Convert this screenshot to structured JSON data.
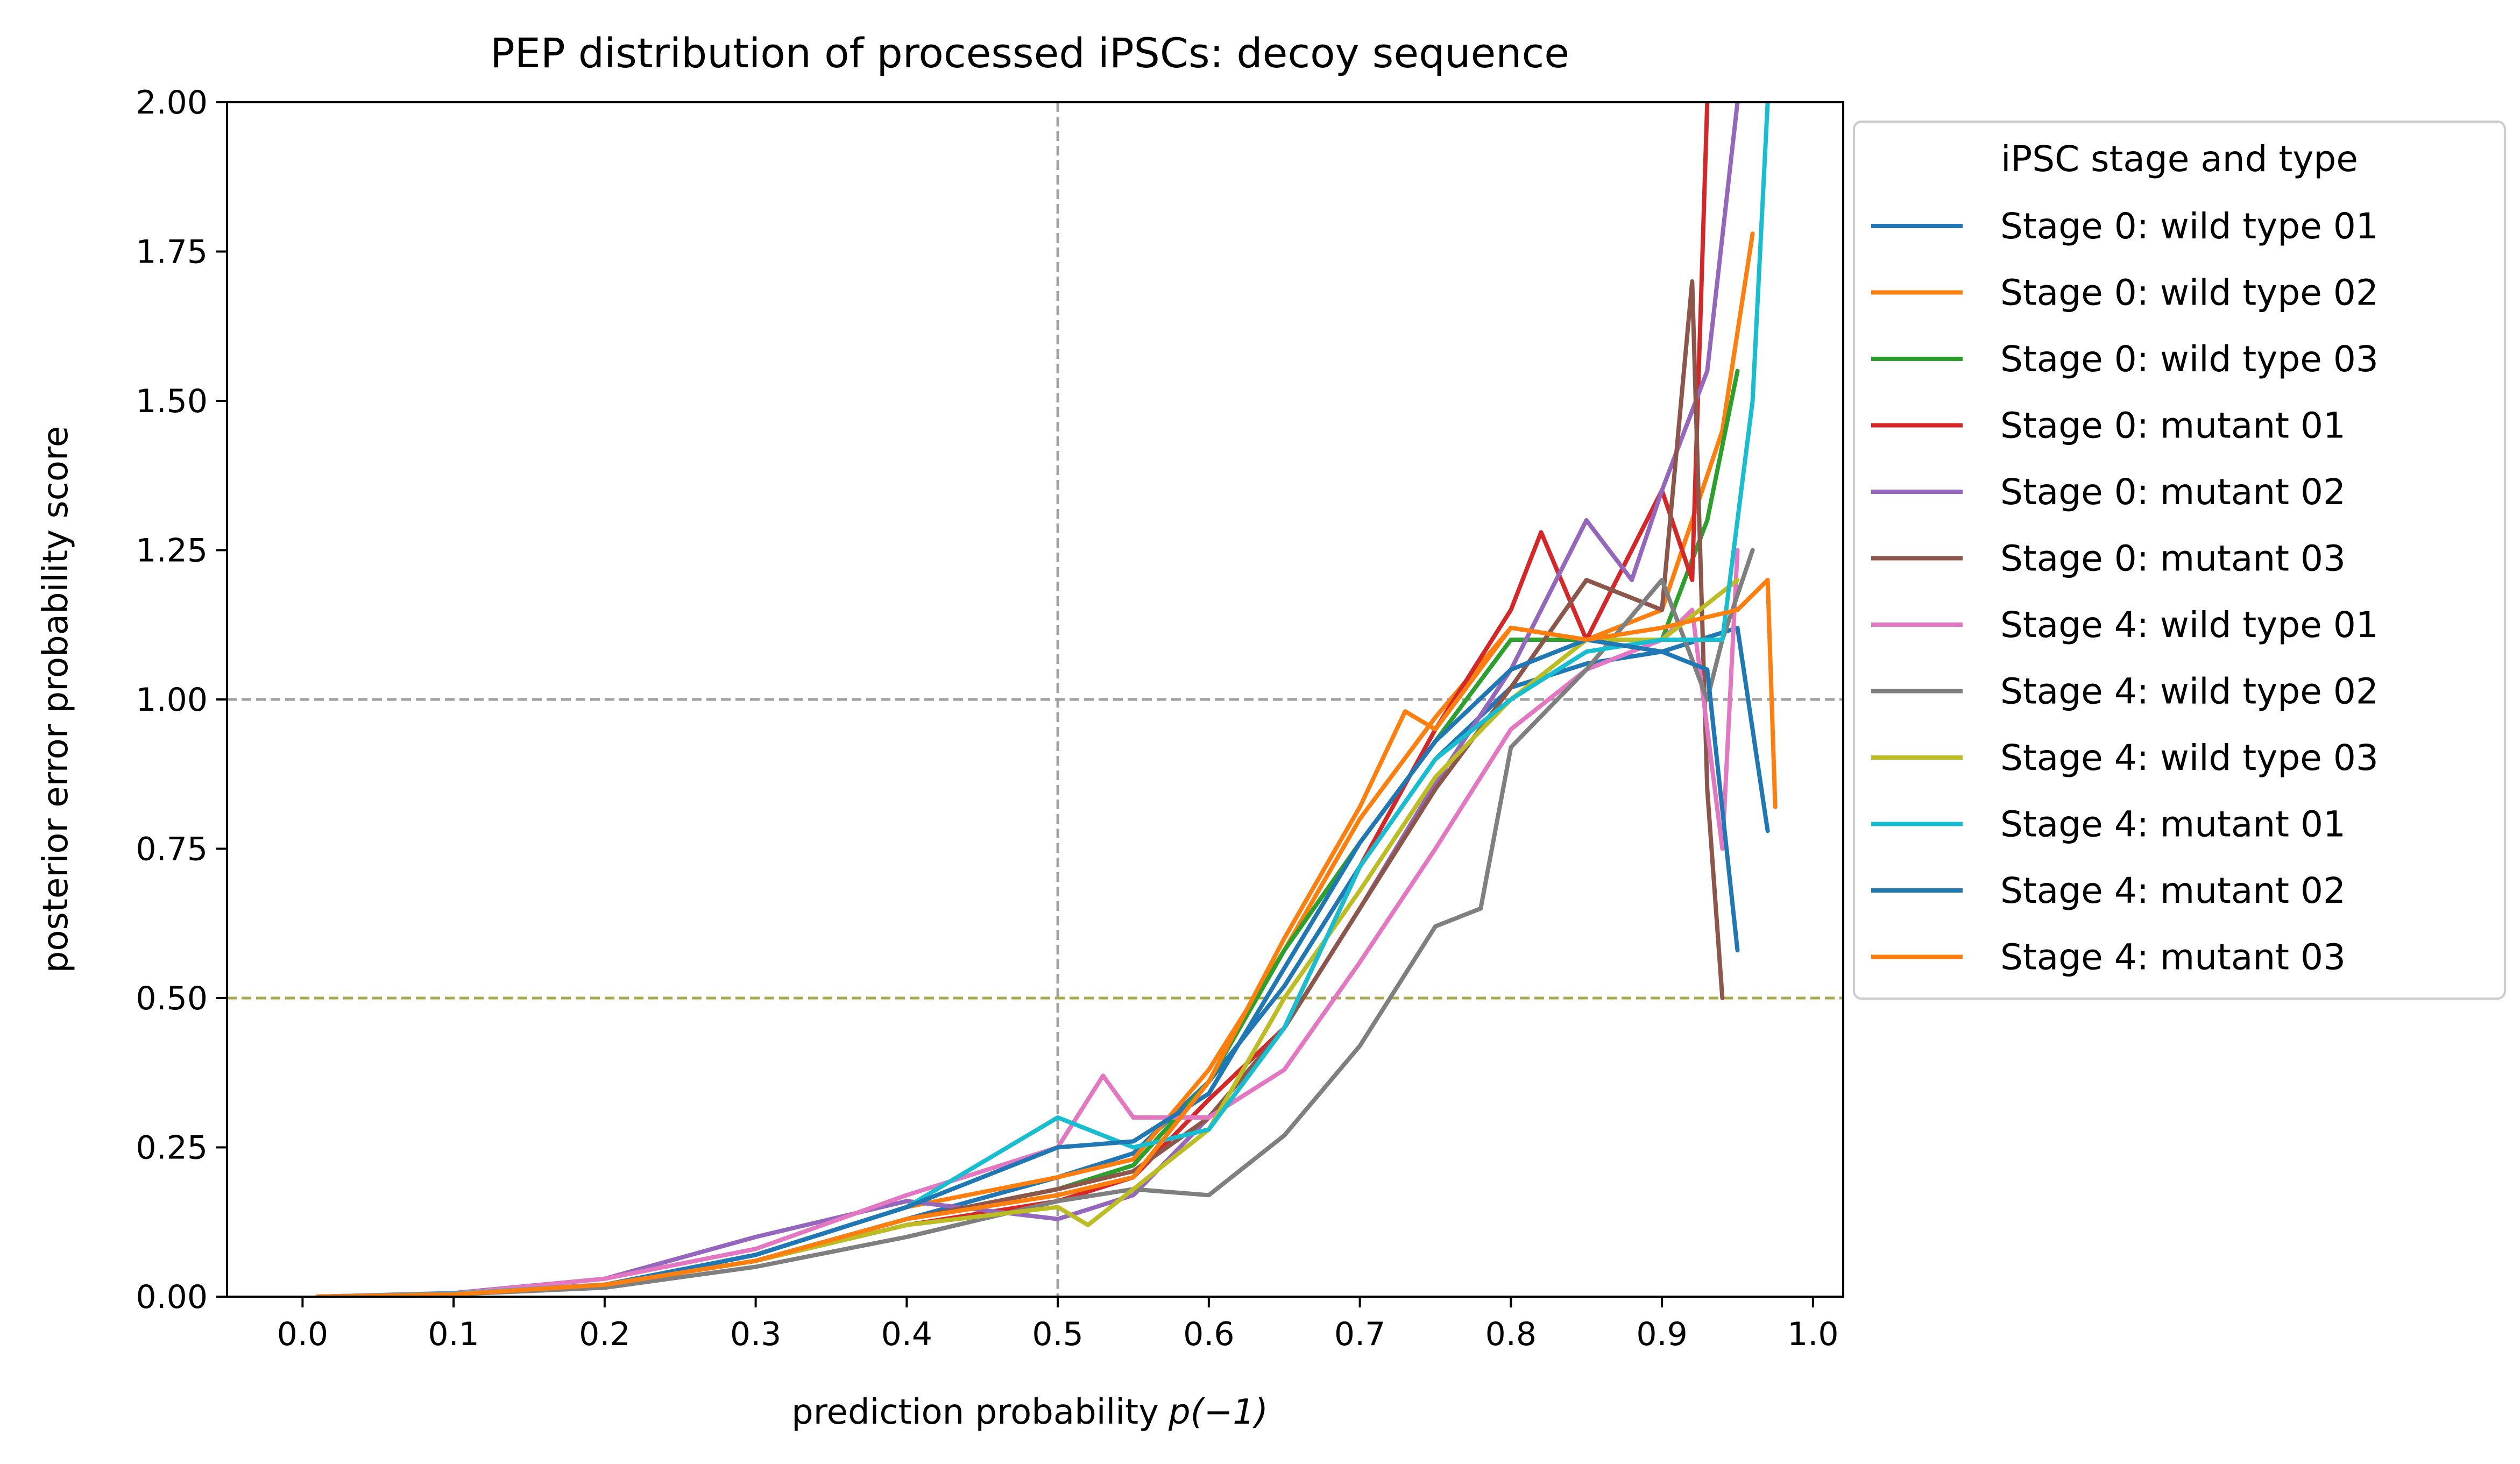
{
  "chart_data": {
    "type": "line",
    "title": "PEP distribution of processed iPSCs: decoy sequence",
    "xlabel_main": "prediction probability",
    "xlabel_math": "p(−1)",
    "ylabel": "posterior error probability score",
    "xlim": [
      -0.05,
      1.02
    ],
    "ylim": [
      0,
      2
    ],
    "x_ticks": [
      0.0,
      0.1,
      0.2,
      0.3,
      0.4,
      0.5,
      0.6,
      0.7,
      0.8,
      0.9,
      1.0
    ],
    "x_tick_labels": [
      "0.0",
      "0.1",
      "0.2",
      "0.3",
      "0.4",
      "0.5",
      "0.6",
      "0.7",
      "0.8",
      "0.9",
      "1.0"
    ],
    "y_ticks": [
      0.0,
      0.25,
      0.5,
      0.75,
      1.0,
      1.25,
      1.5,
      1.75,
      2.0
    ],
    "y_tick_labels": [
      "0.00",
      "0.25",
      "0.50",
      "0.75",
      "1.00",
      "1.25",
      "1.50",
      "1.75",
      "2.00"
    ],
    "reference_lines": [
      {
        "orientation": "vertical",
        "value": 0.5,
        "color": "#a0a0a0"
      },
      {
        "orientation": "horizontal",
        "value": 1.0,
        "color": "#a0a0a0"
      },
      {
        "orientation": "horizontal",
        "value": 0.5,
        "color": "#a8a84e"
      }
    ],
    "legend": {
      "title": "iPSC stage and type",
      "placement": "outside-upper-right"
    },
    "series": [
      {
        "name": "Stage 0: wild type 01",
        "color": "#1f77b4",
        "x": [
          0.01,
          0.1,
          0.2,
          0.3,
          0.4,
          0.5,
          0.55,
          0.6,
          0.65,
          0.7,
          0.75,
          0.8,
          0.85,
          0.9,
          0.95,
          0.97
        ],
        "y": [
          0.0,
          0.005,
          0.02,
          0.06,
          0.13,
          0.2,
          0.24,
          0.36,
          0.52,
          0.72,
          0.9,
          1.02,
          1.06,
          1.08,
          1.12,
          0.78
        ]
      },
      {
        "name": "Stage 0: wild type 02",
        "color": "#ff7f0e",
        "x": [
          0.01,
          0.1,
          0.2,
          0.3,
          0.4,
          0.5,
          0.55,
          0.6,
          0.65,
          0.7,
          0.75,
          0.8,
          0.85,
          0.9,
          0.94,
          0.96
        ],
        "y": [
          0.0,
          0.005,
          0.02,
          0.07,
          0.15,
          0.2,
          0.23,
          0.38,
          0.58,
          0.8,
          0.97,
          1.12,
          1.1,
          1.15,
          1.45,
          1.78
        ]
      },
      {
        "name": "Stage 0: wild type 03",
        "color": "#2ca02c",
        "x": [
          0.01,
          0.1,
          0.2,
          0.3,
          0.4,
          0.5,
          0.55,
          0.6,
          0.65,
          0.7,
          0.75,
          0.8,
          0.85,
          0.9,
          0.93,
          0.95
        ],
        "y": [
          0.0,
          0.004,
          0.02,
          0.06,
          0.13,
          0.18,
          0.22,
          0.36,
          0.58,
          0.76,
          0.93,
          1.1,
          1.1,
          1.1,
          1.3,
          1.55
        ]
      },
      {
        "name": "Stage 0: mutant 01",
        "color": "#d62728",
        "x": [
          0.01,
          0.1,
          0.2,
          0.3,
          0.4,
          0.5,
          0.55,
          0.6,
          0.65,
          0.7,
          0.75,
          0.8,
          0.82,
          0.85,
          0.9,
          0.92,
          0.93
        ],
        "y": [
          0.0,
          0.004,
          0.02,
          0.06,
          0.12,
          0.16,
          0.2,
          0.33,
          0.45,
          0.72,
          0.95,
          1.15,
          1.28,
          1.1,
          1.35,
          1.2,
          2.0
        ]
      },
      {
        "name": "Stage 0: mutant 02",
        "color": "#9467bd",
        "x": [
          0.01,
          0.1,
          0.2,
          0.3,
          0.4,
          0.5,
          0.55,
          0.6,
          0.65,
          0.7,
          0.75,
          0.8,
          0.85,
          0.88,
          0.9,
          0.93,
          0.95
        ],
        "y": [
          0.0,
          0.006,
          0.03,
          0.1,
          0.16,
          0.13,
          0.17,
          0.3,
          0.45,
          0.65,
          0.86,
          1.05,
          1.3,
          1.2,
          1.35,
          1.55,
          2.0
        ]
      },
      {
        "name": "Stage 0: mutant 03",
        "color": "#8c564b",
        "x": [
          0.01,
          0.1,
          0.2,
          0.3,
          0.4,
          0.5,
          0.55,
          0.6,
          0.65,
          0.7,
          0.75,
          0.8,
          0.85,
          0.9,
          0.92,
          0.93,
          0.94
        ],
        "y": [
          0.0,
          0.005,
          0.02,
          0.06,
          0.13,
          0.18,
          0.21,
          0.3,
          0.45,
          0.65,
          0.85,
          1.02,
          1.2,
          1.15,
          1.7,
          0.85,
          0.5
        ]
      },
      {
        "name": "Stage 4: wild type 01",
        "color": "#e377c2",
        "x": [
          0.01,
          0.1,
          0.2,
          0.3,
          0.4,
          0.5,
          0.53,
          0.55,
          0.6,
          0.65,
          0.7,
          0.75,
          0.8,
          0.85,
          0.9,
          0.92,
          0.94,
          0.95
        ],
        "y": [
          0.0,
          0.005,
          0.03,
          0.08,
          0.17,
          0.25,
          0.37,
          0.3,
          0.3,
          0.38,
          0.56,
          0.75,
          0.95,
          1.05,
          1.1,
          1.15,
          0.75,
          1.25
        ]
      },
      {
        "name": "Stage 4: wild type 02",
        "color": "#7f7f7f",
        "x": [
          0.01,
          0.1,
          0.2,
          0.3,
          0.4,
          0.5,
          0.55,
          0.6,
          0.65,
          0.7,
          0.75,
          0.78,
          0.8,
          0.85,
          0.9,
          0.93,
          0.94,
          0.96
        ],
        "y": [
          0.0,
          0.004,
          0.015,
          0.05,
          0.1,
          0.16,
          0.18,
          0.17,
          0.27,
          0.42,
          0.62,
          0.65,
          0.92,
          1.05,
          1.2,
          1.0,
          1.1,
          1.25
        ]
      },
      {
        "name": "Stage 4: wild type 03",
        "color": "#bcbd22",
        "x": [
          0.01,
          0.1,
          0.2,
          0.3,
          0.4,
          0.5,
          0.52,
          0.55,
          0.6,
          0.65,
          0.7,
          0.75,
          0.8,
          0.85,
          0.9,
          0.95
        ],
        "y": [
          0.0,
          0.004,
          0.02,
          0.06,
          0.12,
          0.15,
          0.12,
          0.18,
          0.28,
          0.5,
          0.68,
          0.87,
          1.0,
          1.1,
          1.1,
          1.2
        ]
      },
      {
        "name": "Stage 4: mutant 01",
        "color": "#17becf",
        "x": [
          0.01,
          0.1,
          0.2,
          0.3,
          0.4,
          0.5,
          0.55,
          0.6,
          0.65,
          0.7,
          0.75,
          0.8,
          0.85,
          0.9,
          0.94,
          0.96,
          0.97
        ],
        "y": [
          0.0,
          0.005,
          0.02,
          0.07,
          0.15,
          0.3,
          0.25,
          0.28,
          0.45,
          0.72,
          0.9,
          1.0,
          1.08,
          1.1,
          1.1,
          1.5,
          2.0
        ]
      },
      {
        "name": "Stage 4: mutant 02",
        "color": "#1f77b4",
        "x": [
          0.01,
          0.1,
          0.2,
          0.3,
          0.4,
          0.5,
          0.55,
          0.6,
          0.65,
          0.7,
          0.75,
          0.8,
          0.85,
          0.9,
          0.93,
          0.95
        ],
        "y": [
          0.0,
          0.004,
          0.02,
          0.07,
          0.15,
          0.25,
          0.26,
          0.34,
          0.55,
          0.76,
          0.93,
          1.05,
          1.1,
          1.08,
          1.05,
          0.58
        ]
      },
      {
        "name": "Stage 4: mutant 03",
        "color": "#ff7f0e",
        "x": [
          0.01,
          0.1,
          0.2,
          0.3,
          0.4,
          0.5,
          0.55,
          0.6,
          0.65,
          0.7,
          0.73,
          0.75,
          0.8,
          0.85,
          0.9,
          0.95,
          0.97,
          0.975
        ],
        "y": [
          0.0,
          0.004,
          0.02,
          0.06,
          0.13,
          0.17,
          0.2,
          0.36,
          0.6,
          0.82,
          0.98,
          0.95,
          1.12,
          1.1,
          1.12,
          1.15,
          1.2,
          0.82
        ]
      }
    ]
  }
}
